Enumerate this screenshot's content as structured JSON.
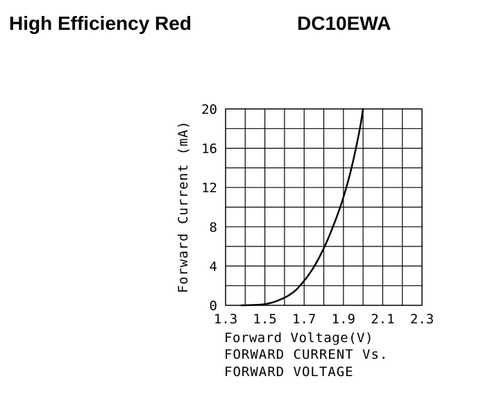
{
  "header": {
    "title": "High Efficiency Red",
    "part_number": "DC10EWA"
  },
  "chart_data": {
    "type": "line",
    "xlabel": "Forward Voltage(V)",
    "ylabel": "Forward Current (mA)",
    "caption": [
      "FORWARD CURRENT Vs.",
      "FORWARD VOLTAGE"
    ],
    "xlim": [
      1.3,
      2.3
    ],
    "ylim": [
      0,
      20
    ],
    "x_ticks": [
      "1.3",
      "1.5",
      "1.7",
      "1.9",
      "2.1",
      "2.3"
    ],
    "y_ticks": [
      "0",
      "4",
      "8",
      "12",
      "16",
      "20"
    ],
    "grid": true,
    "series": [
      {
        "x": [
          1.38,
          1.42,
          1.46,
          1.5,
          1.54,
          1.58,
          1.62,
          1.66,
          1.7,
          1.74,
          1.78,
          1.82,
          1.86,
          1.9,
          1.94,
          1.98,
          2.0
        ],
        "y": [
          0.0,
          0.02,
          0.05,
          0.12,
          0.3,
          0.6,
          1.0,
          1.6,
          2.5,
          3.6,
          5.0,
          6.7,
          8.7,
          11.0,
          13.9,
          17.6,
          20.0
        ]
      }
    ]
  }
}
